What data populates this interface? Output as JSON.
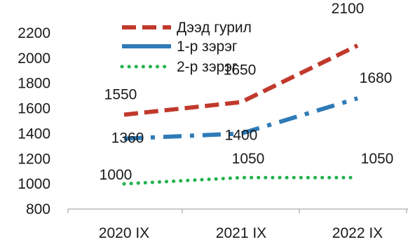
{
  "chart_data": {
    "type": "line",
    "categories": [
      "2020 IX",
      "2021 IX",
      "2022 IX"
    ],
    "ylim": [
      800,
      2200
    ],
    "yticks": [
      800,
      1000,
      1200,
      1400,
      1600,
      1800,
      2000,
      2200
    ],
    "legend_position": "top",
    "grid": false,
    "series": [
      {
        "name": "Дээд гурил",
        "values": [
          1550,
          1650,
          2100
        ],
        "color": "#c0392b",
        "style": "dashed"
      },
      {
        "name": "1-р зэрэг",
        "values": [
          1360,
          1400,
          1680
        ],
        "color": "#2e7bb8",
        "style": "dash-dot"
      },
      {
        "name": "2-р зэрэг",
        "values": [
          1000,
          1050,
          1050
        ],
        "color": "#22b14c",
        "style": "dotted"
      }
    ]
  }
}
